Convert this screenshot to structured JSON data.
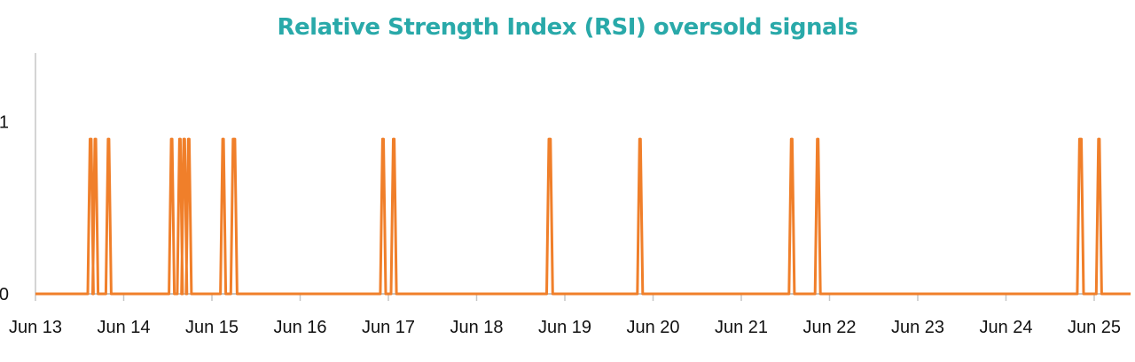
{
  "colors": {
    "title": "#29a9a9",
    "series": "#f07f2a",
    "axis": "#c6c6c6"
  },
  "chart_data": {
    "type": "line",
    "title": "Relative Strength Index (RSI) oversold signals",
    "xlabel": "",
    "ylabel": "",
    "x_tick_labels": [
      "Jun 13",
      "Jun 14",
      "Jun 15",
      "Jun 16",
      "Jun 17",
      "Jun 18",
      "Jun 19",
      "Jun 20",
      "Jun 21",
      "Jun 22",
      "Jun 23",
      "Jun 24",
      "Jun 25"
    ],
    "y_tick_labels": [
      "0",
      "1"
    ],
    "ylim": [
      0,
      1.4
    ],
    "grid": false,
    "legend": "none",
    "series": [
      {
        "value": 0.9,
        "signals": [
          {
            "start": "Jun 13 14:50",
            "end": "Jun 13 15:10"
          },
          {
            "start": "Jun 13 16:10",
            "end": "Jun 13 16:25"
          },
          {
            "start": "Jun 13 19:45",
            "end": "Jun 13 20:00"
          },
          {
            "start": "Jun 14 12:55",
            "end": "Jun 14 13:10"
          },
          {
            "start": "Jun 14 15:10",
            "end": "Jun 14 15:25"
          },
          {
            "start": "Jun 14 16:20",
            "end": "Jun 14 16:35"
          },
          {
            "start": "Jun 14 17:35",
            "end": "Jun 14 17:50"
          },
          {
            "start": "Jun 15 02:55",
            "end": "Jun 15 03:10"
          },
          {
            "start": "Jun 15 05:45",
            "end": "Jun 15 06:15"
          },
          {
            "start": "Jun 16 22:25",
            "end": "Jun 16 22:40"
          },
          {
            "start": "Jun 17 01:20",
            "end": "Jun 17 01:35"
          },
          {
            "start": "Jun 18 19:40",
            "end": "Jun 18 20:05"
          },
          {
            "start": "Jun 19 20:20",
            "end": "Jun 19 20:35"
          },
          {
            "start": "Jun 21 13:35",
            "end": "Jun 21 13:50"
          },
          {
            "start": "Jun 21 20:40",
            "end": "Jun 21 20:55"
          },
          {
            "start": "Jun 24 20:00",
            "end": "Jun 24 20:30"
          },
          {
            "start": "Jun 25 01:10",
            "end": "Jun 25 01:25"
          }
        ]
      }
    ]
  }
}
